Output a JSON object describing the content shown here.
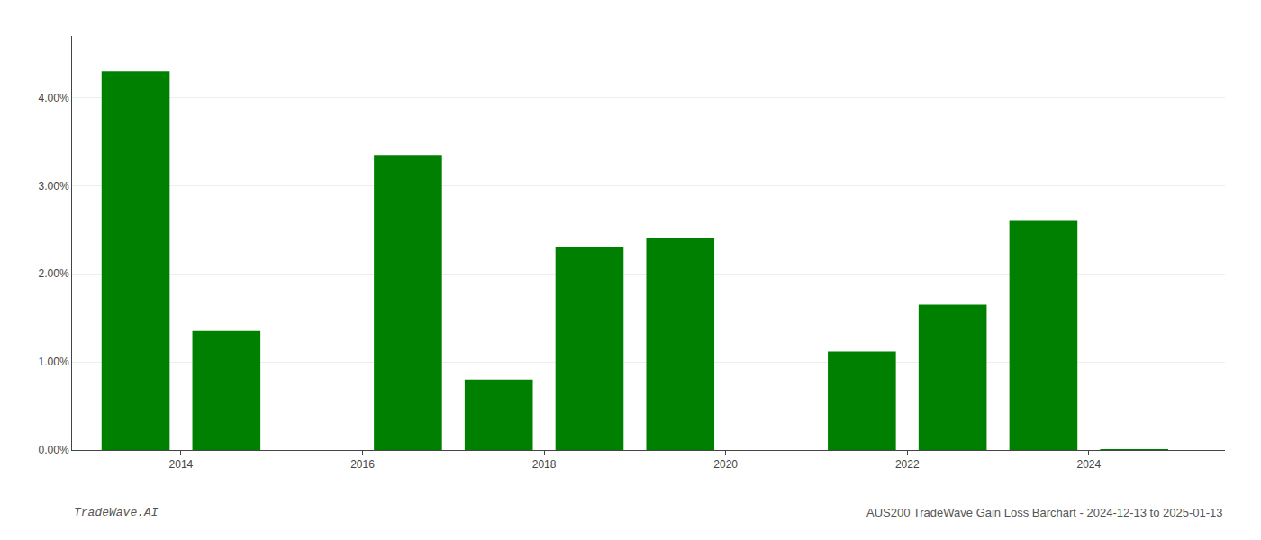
{
  "chart_data": {
    "type": "bar",
    "x": [
      2013.5,
      2014.5,
      2016.5,
      2017.5,
      2018.5,
      2019.5,
      2021.5,
      2022.5,
      2023.5,
      2024.5
    ],
    "values": [
      4.3,
      1.35,
      3.35,
      0.8,
      2.3,
      2.4,
      1.12,
      1.65,
      2.6,
      0.001
    ],
    "color": "#008000",
    "xlim": [
      2012.8,
      2025.5
    ],
    "xticks": [
      2014,
      2016,
      2018,
      2020,
      2022,
      2024
    ],
    "ylim": [
      0,
      4.7
    ],
    "yticks": [
      {
        "value": 0.0,
        "label": "0.00%"
      },
      {
        "value": 1.0,
        "label": "1.00%"
      },
      {
        "value": 2.0,
        "label": "2.00%"
      },
      {
        "value": 3.0,
        "label": "3.00%"
      },
      {
        "value": 4.0,
        "label": "4.00%"
      }
    ],
    "grid": true,
    "annotations": [
      "TradeWave.AI",
      "AUS200 TradeWave Gain Loss Barchart - 2024-12-13 to 2025-01-13"
    ]
  }
}
